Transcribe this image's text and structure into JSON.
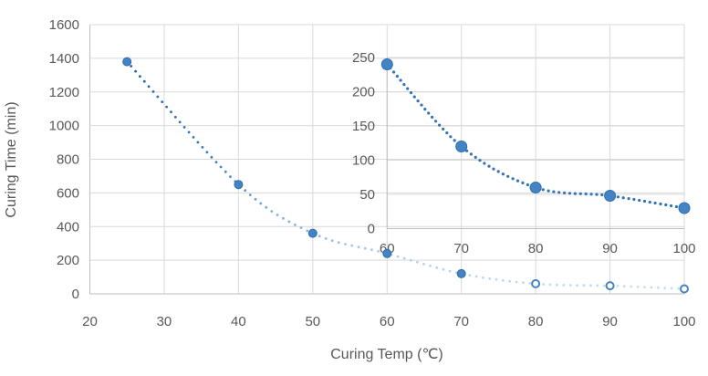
{
  "chart_data": [
    {
      "id": "main",
      "type": "scatter",
      "title": "",
      "xlabel": "Curing Temp (℃)",
      "ylabel": "Curing Time (min)",
      "x": [
        25,
        40,
        50,
        60,
        70,
        80,
        90,
        100
      ],
      "y": [
        1380,
        650,
        360,
        240,
        120,
        60,
        48,
        30
      ],
      "xlim": [
        20,
        100
      ],
      "ylim": [
        0,
        1600
      ],
      "xticks": [
        20,
        30,
        40,
        50,
        60,
        70,
        80,
        90,
        100
      ],
      "yticks": [
        0,
        200,
        400,
        600,
        800,
        1000,
        1200,
        1400,
        1600
      ],
      "grid": true,
      "legend": false,
      "line_style": "dotted",
      "ring_marker_x": [
        80,
        90,
        100
      ]
    },
    {
      "id": "inset-zoom",
      "type": "scatter",
      "title": "",
      "xlabel": "",
      "ylabel": "",
      "x": [
        60,
        70,
        80,
        90,
        100
      ],
      "y": [
        240,
        120,
        60,
        48,
        30
      ],
      "xlim": [
        60,
        100
      ],
      "ylim": [
        0,
        250
      ],
      "xticks": [
        60,
        70,
        80,
        90,
        100
      ],
      "yticks": [
        0,
        50,
        100,
        150,
        200,
        250
      ],
      "grid": true,
      "legend": false,
      "line_style": "dotted"
    }
  ],
  "colors": {
    "marker_fill": "#4484c4",
    "marker_stroke": "#2e6db0",
    "ring_fill": "#ffffff",
    "trend_dark": "#1d5fa7",
    "trend_light": "#c6def2",
    "inset_trend": "#3273b7",
    "gridline": "#d9d9d9",
    "axis_line": "#bdbdbd",
    "tick_text": "#595959",
    "title_text": "#595959"
  }
}
